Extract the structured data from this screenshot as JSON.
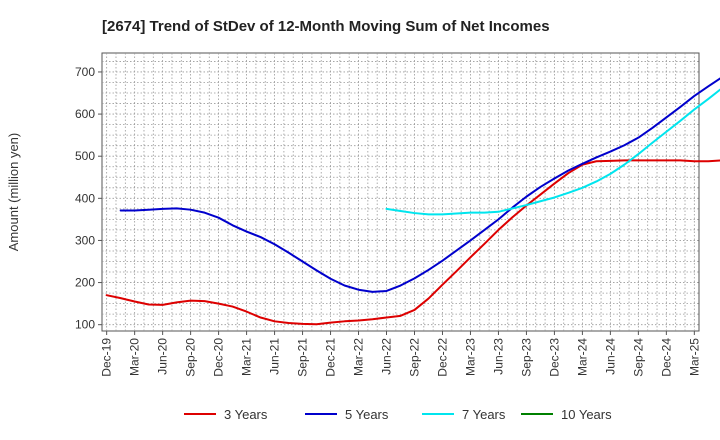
{
  "chart_data": {
    "type": "line",
    "title": "[2674]  Trend of StDev of 12-Month Moving Sum of Net Incomes",
    "ylabel": "Amount (million yen)",
    "xlabel": "",
    "ylim": [
      85,
      745
    ],
    "yticks": [
      100,
      200,
      300,
      400,
      500,
      600,
      700
    ],
    "x_tick_labels": [
      "Dec-19",
      "Mar-20",
      "Jun-20",
      "Sep-20",
      "Dec-20",
      "Mar-21",
      "Jun-21",
      "Sep-21",
      "Dec-21",
      "Mar-22",
      "Jun-22",
      "Sep-22",
      "Dec-22",
      "Mar-23",
      "Jun-23",
      "Sep-23",
      "Dec-23",
      "Mar-24",
      "Jun-24",
      "Sep-24",
      "Dec-24",
      "Mar-25"
    ],
    "grid": true,
    "legend_position": "bottom",
    "series": [
      {
        "name": "3 Years",
        "color": "#dd0000",
        "values": [
          170,
          163,
          155,
          148,
          147,
          153,
          157,
          156,
          150,
          143,
          131,
          117,
          108,
          104,
          102,
          101,
          105,
          108,
          110,
          113,
          117,
          121,
          135,
          162,
          195,
          227,
          260,
          292,
          325,
          355,
          383,
          409,
          435,
          460,
          480,
          488,
          489,
          490,
          490,
          490,
          490,
          490,
          488,
          488,
          490,
          497,
          500,
          496,
          485,
          470,
          455
        ]
      },
      {
        "name": "5 Years",
        "color": "#0000cc",
        "values": [
          null,
          371,
          371,
          373,
          375,
          376,
          373,
          366,
          354,
          336,
          321,
          308,
          291,
          271,
          250,
          229,
          209,
          193,
          183,
          178,
          180,
          193,
          210,
          230,
          252,
          276,
          300,
          325,
          350,
          378,
          404,
          427,
          447,
          466,
          482,
          497,
          511,
          526,
          544,
          567,
          592,
          617,
          643,
          666,
          688,
          708,
          724
        ]
      },
      {
        "name": "7 Years",
        "color": "#00e5ee",
        "values": [
          null,
          null,
          null,
          null,
          null,
          null,
          null,
          null,
          null,
          null,
          null,
          null,
          null,
          null,
          null,
          null,
          null,
          null,
          null,
          null,
          375,
          370,
          365,
          362,
          362,
          364,
          366,
          366,
          368,
          376,
          384,
          393,
          402,
          413,
          425,
          440,
          458,
          480,
          505,
          532,
          558,
          584,
          611,
          636,
          662,
          688
        ]
      },
      {
        "name": "10 Years",
        "color": "#008000",
        "values": []
      }
    ]
  }
}
